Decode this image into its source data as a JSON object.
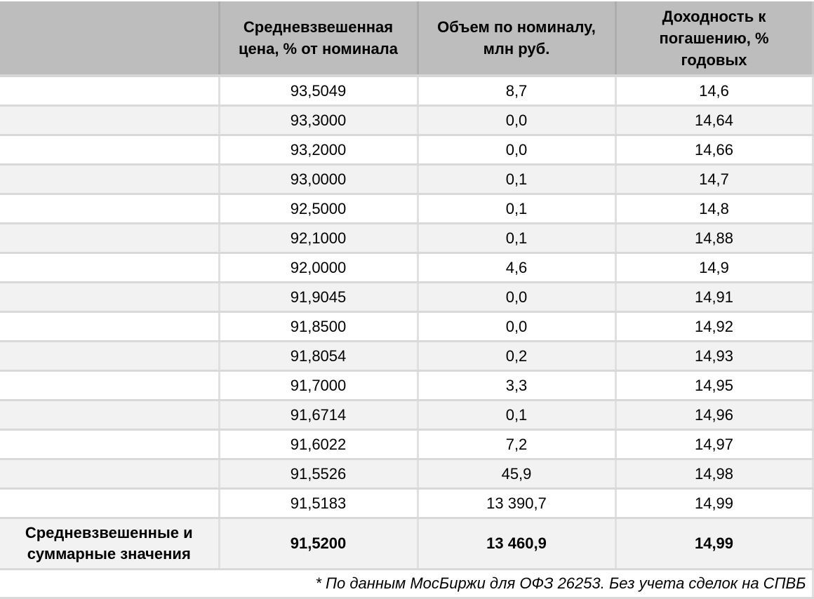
{
  "table": {
    "headers": [
      {
        "lines": [
          ""
        ]
      },
      {
        "lines": [
          "Средневзвешенная",
          "цена, % от номинала"
        ]
      },
      {
        "lines": [
          "Объем по номиналу,",
          "млн руб."
        ]
      },
      {
        "lines": [
          "Доходность к",
          "погашению, %",
          "годовых"
        ]
      }
    ],
    "rows": [
      {
        "label": "",
        "price": "93,5049",
        "volume": "8,7",
        "yield": "14,6"
      },
      {
        "label": "",
        "price": "93,3000",
        "volume": "0,0",
        "yield": "14,64"
      },
      {
        "label": "",
        "price": "93,2000",
        "volume": "0,0",
        "yield": "14,66"
      },
      {
        "label": "",
        "price": "93,0000",
        "volume": "0,1",
        "yield": "14,7"
      },
      {
        "label": "",
        "price": "92,5000",
        "volume": "0,1",
        "yield": "14,8"
      },
      {
        "label": "",
        "price": "92,1000",
        "volume": "0,1",
        "yield": "14,88"
      },
      {
        "label": "",
        "price": "92,0000",
        "volume": "4,6",
        "yield": "14,9"
      },
      {
        "label": "",
        "price": "91,9045",
        "volume": "0,0",
        "yield": "14,91"
      },
      {
        "label": "",
        "price": "91,8500",
        "volume": "0,0",
        "yield": "14,92"
      },
      {
        "label": "",
        "price": "91,8054",
        "volume": "0,2",
        "yield": "14,93"
      },
      {
        "label": "",
        "price": "91,7000",
        "volume": "3,3",
        "yield": "14,95"
      },
      {
        "label": "",
        "price": "91,6714",
        "volume": "0,1",
        "yield": "14,96"
      },
      {
        "label": "",
        "price": "91,6022",
        "volume": "7,2",
        "yield": "14,97"
      },
      {
        "label": "",
        "price": "91,5526",
        "volume": "45,9",
        "yield": "14,98"
      },
      {
        "label": "",
        "price": "91,5183",
        "volume": "13 390,7",
        "yield": "14,99"
      }
    ],
    "total": {
      "label_lines": [
        "Средневзвешенные и",
        "суммарные значения"
      ],
      "price": "91,5200",
      "volume": "13 460,9",
      "yield": "14,99"
    },
    "footnote": "* По данным МосБиржи для ОФЗ 26253. Без учета сделок на СПВБ"
  },
  "colors": {
    "header_bg": "#bdbdbd",
    "row_alt_bg": "#f2f2f2",
    "row_bg": "#ffffff",
    "grid": "#d9d9d9"
  }
}
